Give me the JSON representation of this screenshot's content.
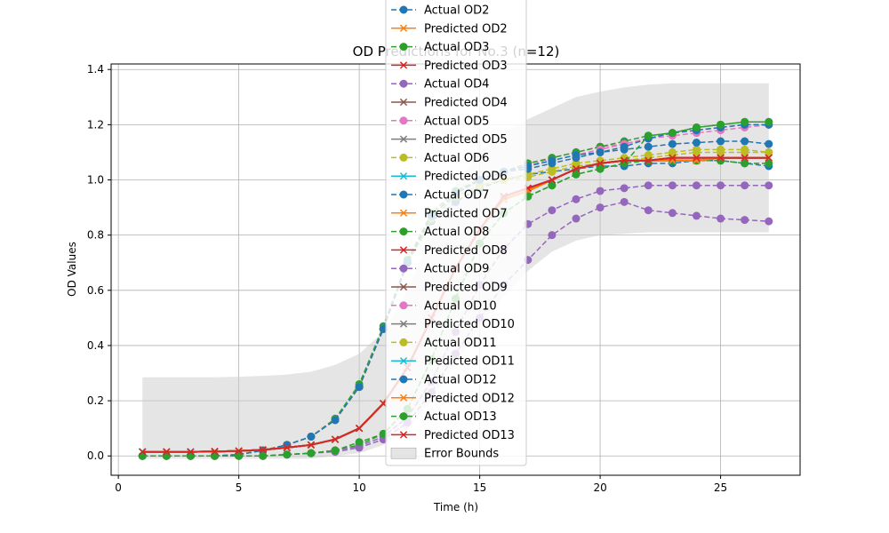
{
  "chart_data": {
    "type": "line",
    "title": "OD Predictions for No.3 (n=12)",
    "xlabel": "Time (h)",
    "ylabel": "OD Values",
    "xlim": [
      -0.3,
      28.3
    ],
    "ylim": [
      -0.07,
      1.42
    ],
    "xticks": [
      0,
      5,
      10,
      15,
      20,
      25
    ],
    "yticks": [
      0.0,
      0.2,
      0.4,
      0.6,
      0.8,
      1.0,
      1.2,
      1.4
    ],
    "grid": true,
    "legend_position": "top-center",
    "x": [
      1,
      2,
      3,
      4,
      5,
      6,
      7,
      8,
      9,
      10,
      11,
      12,
      13,
      14,
      15,
      16,
      17,
      18,
      19,
      20,
      21,
      22,
      23,
      24,
      25,
      26,
      27
    ],
    "error_bounds": {
      "name": "Error Bounds",
      "color": "#cccccc",
      "upper": [
        0.285,
        0.285,
        0.285,
        0.285,
        0.287,
        0.29,
        0.295,
        0.305,
        0.33,
        0.37,
        0.45,
        0.6,
        0.8,
        0.98,
        1.1,
        1.17,
        1.22,
        1.26,
        1.3,
        1.32,
        1.335,
        1.345,
        1.35,
        1.35,
        1.35,
        1.35,
        1.35
      ],
      "lower": [
        -0.01,
        -0.01,
        -0.01,
        -0.01,
        -0.01,
        -0.01,
        -0.01,
        -0.01,
        0.0,
        0.01,
        0.04,
        0.1,
        0.2,
        0.33,
        0.47,
        0.58,
        0.67,
        0.74,
        0.78,
        0.8,
        0.805,
        0.81,
        0.81,
        0.81,
        0.81,
        0.81,
        0.81
      ]
    },
    "series": [
      {
        "name": "Actual OD2",
        "style": "actual",
        "color": "#1f77b4",
        "values": [
          0.0,
          0.0,
          0.0,
          0.0,
          0.005,
          0.02,
          0.04,
          0.07,
          0.13,
          0.25,
          0.46,
          0.7,
          0.85,
          0.92,
          0.97,
          1.0,
          1.02,
          1.03,
          1.04,
          1.05,
          1.05,
          1.06,
          1.06,
          1.07,
          1.07,
          1.06,
          1.05
        ]
      },
      {
        "name": "Predicted OD2",
        "style": "predicted",
        "color": "#ff7f0e",
        "values": [
          0.015,
          0.015,
          0.015,
          0.016,
          0.018,
          0.022,
          0.03,
          0.04,
          0.06,
          0.1,
          0.19,
          0.32,
          0.5,
          0.68,
          0.82,
          0.93,
          0.96,
          1.0,
          1.04,
          1.06,
          1.07,
          1.07,
          1.07,
          1.07,
          1.08,
          1.08,
          1.08
        ]
      },
      {
        "name": "Actual OD3",
        "style": "actual",
        "color": "#2ca02c",
        "values": [
          0.0,
          0.0,
          0.0,
          0.0,
          0.0,
          0.0,
          0.005,
          0.01,
          0.02,
          0.04,
          0.08,
          0.17,
          0.35,
          0.57,
          0.77,
          0.88,
          0.94,
          0.98,
          1.02,
          1.04,
          1.06,
          1.07,
          1.07,
          1.07,
          1.07,
          1.06,
          1.06
        ]
      },
      {
        "name": "Predicted OD3",
        "style": "predicted",
        "color": "#d62728",
        "values": [
          0.015,
          0.015,
          0.015,
          0.016,
          0.018,
          0.022,
          0.03,
          0.04,
          0.06,
          0.1,
          0.19,
          0.32,
          0.5,
          0.68,
          0.82,
          0.94,
          0.97,
          1.0,
          1.04,
          1.06,
          1.07,
          1.07,
          1.08,
          1.08,
          1.08,
          1.08,
          1.08
        ]
      },
      {
        "name": "Actual OD4",
        "style": "actual",
        "color": "#9467bd",
        "values": [
          0.0,
          0.0,
          0.0,
          0.0,
          0.0,
          0.0,
          0.005,
          0.01,
          0.015,
          0.03,
          0.06,
          0.12,
          0.23,
          0.37,
          0.5,
          0.62,
          0.71,
          0.8,
          0.86,
          0.9,
          0.92,
          0.89,
          0.88,
          0.87,
          0.86,
          0.855,
          0.85
        ]
      },
      {
        "name": "Predicted OD4",
        "style": "predicted",
        "color": "#8c564b",
        "values": [
          0.015,
          0.015,
          0.015,
          0.016,
          0.018,
          0.022,
          0.03,
          0.04,
          0.06,
          0.1,
          0.19,
          0.32,
          0.5,
          0.68,
          0.82,
          0.93,
          0.96,
          1.0,
          1.04,
          1.06,
          1.07,
          1.07,
          1.07,
          1.07,
          1.08,
          1.08,
          1.08
        ]
      },
      {
        "name": "Actual OD5",
        "style": "actual",
        "color": "#e377c2",
        "values": [
          0.0,
          0.0,
          0.0,
          0.0,
          0.005,
          0.02,
          0.04,
          0.07,
          0.13,
          0.25,
          0.46,
          0.7,
          0.87,
          0.95,
          1.0,
          1.03,
          1.05,
          1.08,
          1.1,
          1.12,
          1.13,
          1.15,
          1.17,
          1.18,
          1.19,
          1.2,
          1.2
        ]
      },
      {
        "name": "Predicted OD5",
        "style": "predicted",
        "color": "#7f7f7f",
        "values": [
          0.015,
          0.015,
          0.015,
          0.016,
          0.018,
          0.022,
          0.03,
          0.04,
          0.06,
          0.1,
          0.19,
          0.32,
          0.5,
          0.68,
          0.82,
          0.93,
          0.96,
          1.0,
          1.04,
          1.06,
          1.07,
          1.07,
          1.07,
          1.07,
          1.08,
          1.08,
          1.08
        ]
      },
      {
        "name": "Actual OD6",
        "style": "actual",
        "color": "#bcbd22",
        "values": [
          0.0,
          0.0,
          0.0,
          0.0,
          0.005,
          0.02,
          0.04,
          0.07,
          0.13,
          0.25,
          0.46,
          0.7,
          0.86,
          0.94,
          0.98,
          1.0,
          1.02,
          1.04,
          1.06,
          1.07,
          1.08,
          1.09,
          1.1,
          1.11,
          1.11,
          1.11,
          1.1
        ]
      },
      {
        "name": "Predicted OD6",
        "style": "predicted",
        "color": "#17becf",
        "values": [
          0.015,
          0.015,
          0.015,
          0.016,
          0.018,
          0.022,
          0.03,
          0.04,
          0.06,
          0.1,
          0.19,
          0.32,
          0.5,
          0.68,
          0.82,
          0.93,
          0.96,
          1.0,
          1.04,
          1.06,
          1.07,
          1.07,
          1.07,
          1.07,
          1.08,
          1.08,
          1.08
        ]
      },
      {
        "name": "Actual OD7",
        "style": "actual",
        "color": "#1f77b4",
        "values": [
          0.0,
          0.0,
          0.0,
          0.0,
          0.005,
          0.02,
          0.04,
          0.07,
          0.13,
          0.25,
          0.46,
          0.7,
          0.87,
          0.95,
          1.0,
          1.03,
          1.04,
          1.06,
          1.08,
          1.1,
          1.11,
          1.12,
          1.13,
          1.135,
          1.14,
          1.14,
          1.13
        ]
      },
      {
        "name": "Predicted OD7",
        "style": "predicted",
        "color": "#ff7f0e",
        "values": [
          0.015,
          0.015,
          0.015,
          0.016,
          0.018,
          0.022,
          0.03,
          0.04,
          0.06,
          0.1,
          0.19,
          0.32,
          0.5,
          0.68,
          0.82,
          0.93,
          0.96,
          1.0,
          1.04,
          1.06,
          1.07,
          1.07,
          1.07,
          1.07,
          1.08,
          1.08,
          1.08
        ]
      },
      {
        "name": "Actual OD8",
        "style": "actual",
        "color": "#2ca02c",
        "values": [
          0.0,
          0.0,
          0.0,
          0.0,
          0.005,
          0.02,
          0.04,
          0.07,
          0.135,
          0.26,
          0.47,
          0.71,
          0.88,
          0.96,
          1.0,
          1.03,
          1.06,
          1.08,
          1.1,
          1.12,
          1.14,
          1.16,
          1.17,
          1.19,
          1.2,
          1.21,
          1.21
        ]
      },
      {
        "name": "Predicted OD8",
        "style": "predicted",
        "color": "#d62728",
        "values": [
          0.015,
          0.015,
          0.015,
          0.016,
          0.018,
          0.022,
          0.03,
          0.04,
          0.06,
          0.1,
          0.19,
          0.32,
          0.5,
          0.68,
          0.82,
          0.94,
          0.97,
          1.0,
          1.04,
          1.06,
          1.07,
          1.07,
          1.08,
          1.08,
          1.08,
          1.08,
          1.08
        ]
      },
      {
        "name": "Actual OD9",
        "style": "actual",
        "color": "#9467bd",
        "values": [
          0.0,
          0.0,
          0.0,
          0.0,
          0.0,
          0.0,
          0.005,
          0.01,
          0.02,
          0.035,
          0.07,
          0.14,
          0.27,
          0.45,
          0.62,
          0.75,
          0.84,
          0.89,
          0.93,
          0.96,
          0.97,
          0.98,
          0.98,
          0.98,
          0.98,
          0.98,
          0.98
        ]
      },
      {
        "name": "Predicted OD9",
        "style": "predicted",
        "color": "#8c564b",
        "values": [
          0.015,
          0.015,
          0.015,
          0.016,
          0.018,
          0.022,
          0.03,
          0.04,
          0.06,
          0.1,
          0.19,
          0.32,
          0.5,
          0.68,
          0.82,
          0.93,
          0.96,
          1.0,
          1.04,
          1.06,
          1.07,
          1.07,
          1.07,
          1.07,
          1.08,
          1.08,
          1.08
        ]
      },
      {
        "name": "Actual OD10",
        "style": "actual",
        "color": "#e377c2",
        "values": [
          0.0,
          0.0,
          0.0,
          0.0,
          0.005,
          0.02,
          0.04,
          0.07,
          0.13,
          0.25,
          0.46,
          0.7,
          0.87,
          0.95,
          1.0,
          1.03,
          1.05,
          1.07,
          1.09,
          1.11,
          1.13,
          1.15,
          1.16,
          1.17,
          1.18,
          1.19,
          1.2
        ]
      },
      {
        "name": "Predicted OD10",
        "style": "predicted",
        "color": "#7f7f7f",
        "values": [
          0.015,
          0.015,
          0.015,
          0.016,
          0.018,
          0.022,
          0.03,
          0.04,
          0.06,
          0.1,
          0.19,
          0.32,
          0.5,
          0.68,
          0.82,
          0.93,
          0.96,
          1.0,
          1.04,
          1.06,
          1.07,
          1.07,
          1.07,
          1.07,
          1.08,
          1.08,
          1.08
        ]
      },
      {
        "name": "Actual OD11",
        "style": "actual",
        "color": "#bcbd22",
        "values": [
          0.0,
          0.0,
          0.0,
          0.0,
          0.005,
          0.02,
          0.04,
          0.07,
          0.13,
          0.25,
          0.46,
          0.7,
          0.86,
          0.94,
          0.98,
          1.0,
          1.01,
          1.03,
          1.05,
          1.06,
          1.07,
          1.08,
          1.09,
          1.1,
          1.1,
          1.1,
          1.1
        ]
      },
      {
        "name": "Predicted OD11",
        "style": "predicted",
        "color": "#17becf",
        "values": [
          0.015,
          0.015,
          0.015,
          0.016,
          0.018,
          0.022,
          0.03,
          0.04,
          0.06,
          0.1,
          0.19,
          0.32,
          0.5,
          0.68,
          0.82,
          0.93,
          0.96,
          1.0,
          1.04,
          1.06,
          1.07,
          1.07,
          1.07,
          1.07,
          1.08,
          1.08,
          1.08
        ]
      },
      {
        "name": "Actual OD12",
        "style": "actual",
        "color": "#1f77b4",
        "values": [
          0.0,
          0.0,
          0.0,
          0.0,
          0.005,
          0.02,
          0.04,
          0.07,
          0.13,
          0.25,
          0.46,
          0.7,
          0.87,
          0.95,
          1.0,
          1.03,
          1.05,
          1.07,
          1.09,
          1.1,
          1.12,
          1.15,
          1.17,
          1.18,
          1.19,
          1.2,
          1.2
        ]
      },
      {
        "name": "Predicted OD12",
        "style": "predicted",
        "color": "#ff7f0e",
        "values": [
          0.015,
          0.015,
          0.015,
          0.016,
          0.018,
          0.022,
          0.03,
          0.04,
          0.06,
          0.1,
          0.19,
          0.32,
          0.5,
          0.68,
          0.82,
          0.93,
          0.96,
          1.0,
          1.04,
          1.06,
          1.07,
          1.07,
          1.07,
          1.07,
          1.08,
          1.08,
          1.08
        ]
      },
      {
        "name": "Actual OD13",
        "style": "actual",
        "color": "#2ca02c",
        "values": [
          0.0,
          0.0,
          0.0,
          0.0,
          0.0,
          0.0,
          0.005,
          0.01,
          0.02,
          0.05,
          0.08,
          0.17,
          0.35,
          0.57,
          0.77,
          0.88,
          0.94,
          0.98,
          1.02,
          1.04,
          1.06,
          1.16,
          1.17,
          1.19,
          1.2,
          1.21,
          1.21
        ]
      },
      {
        "name": "Predicted OD13",
        "style": "predicted",
        "color": "#d62728",
        "values": [
          0.015,
          0.015,
          0.015,
          0.016,
          0.018,
          0.022,
          0.03,
          0.04,
          0.06,
          0.1,
          0.19,
          0.32,
          0.5,
          0.68,
          0.82,
          0.94,
          0.97,
          1.0,
          1.04,
          1.06,
          1.07,
          1.07,
          1.08,
          1.08,
          1.08,
          1.08,
          1.08
        ]
      }
    ]
  }
}
